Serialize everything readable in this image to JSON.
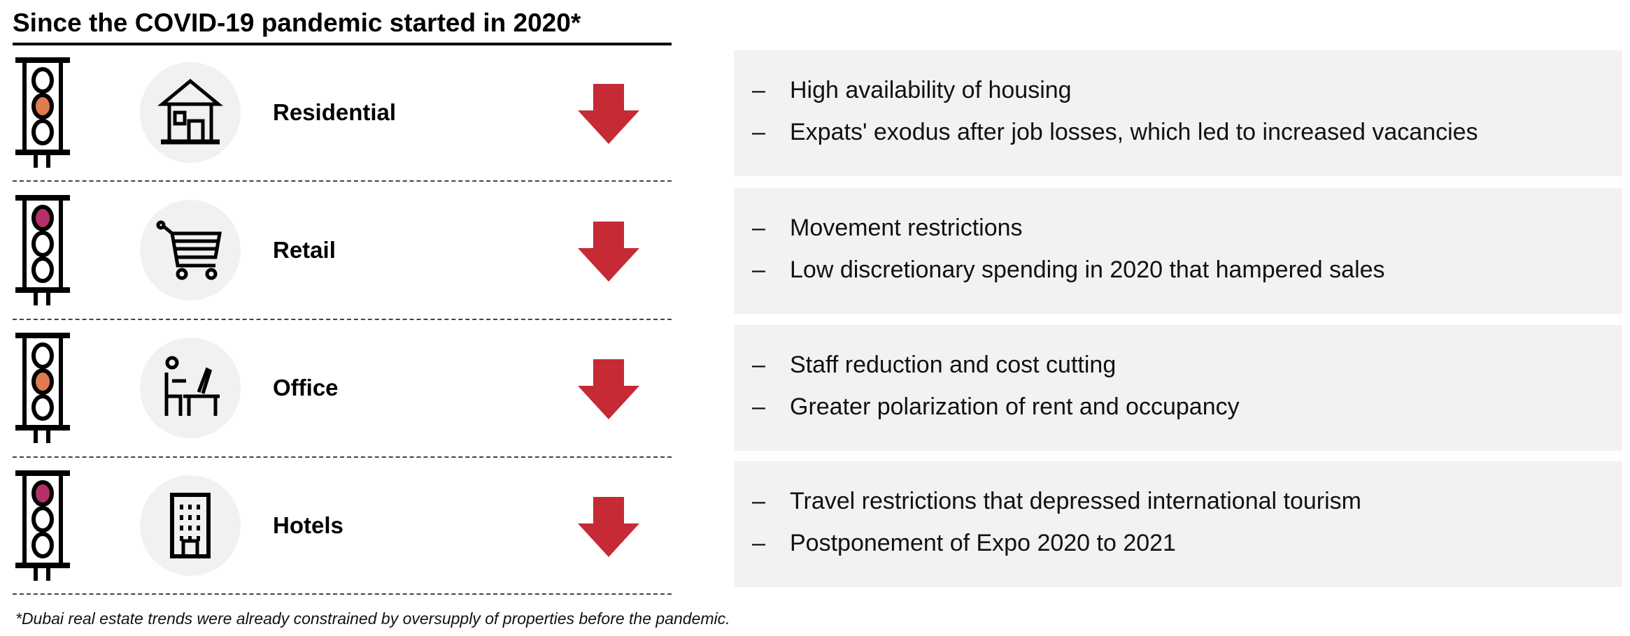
{
  "title": "Since the COVID-19 pandemic started in 2020*",
  "colors": {
    "orange": "#e07a4f",
    "magenta": "#b5306a",
    "arrow_red": "#c62a35",
    "panel_bg": "#f2f2f2"
  },
  "rows": [
    {
      "label": "Residential",
      "icon": "house-icon",
      "light": "middle-orange",
      "trend": "down-arrow-icon",
      "bullets": [
        "High availability of housing",
        "Expats' exodus after job losses, which led to increased vacancies"
      ]
    },
    {
      "label": "Retail",
      "icon": "shopping-cart-icon",
      "light": "top-magenta",
      "trend": "down-arrow-icon",
      "bullets": [
        "Movement restrictions",
        "Low discretionary spending in 2020 that hampered sales"
      ]
    },
    {
      "label": "Office",
      "icon": "person-at-desk-icon",
      "light": "middle-orange",
      "trend": "down-arrow-icon",
      "bullets": [
        "Staff reduction and cost cutting",
        "Greater polarization of rent and occupancy"
      ]
    },
    {
      "label": "Hotels",
      "icon": "hotel-building-icon",
      "light": "top-magenta",
      "trend": "down-arrow-icon",
      "bullets": [
        "Travel restrictions that depressed international tourism",
        "Postponement of Expo 2020 to 2021"
      ]
    }
  ],
  "dash": "–",
  "footnote": "*Dubai real estate trends were already constrained by oversupply of properties before the pandemic."
}
